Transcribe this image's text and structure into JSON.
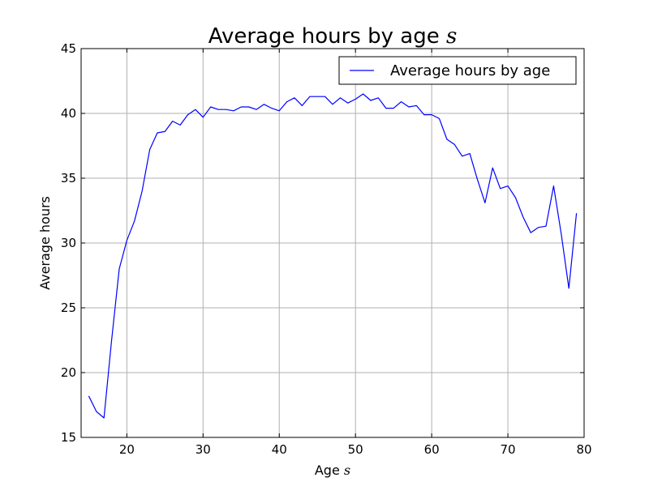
{
  "chart_data": {
    "type": "line",
    "title_text": "Average hours by age",
    "title_symbol": "s",
    "xlabel_text": "Age",
    "xlabel_symbol": "s",
    "ylabel": "Average hours",
    "xlim": [
      14,
      80
    ],
    "ylim": [
      15,
      45
    ],
    "x_ticks": [
      20,
      30,
      40,
      50,
      60,
      70,
      80
    ],
    "y_ticks": [
      15,
      20,
      25,
      30,
      35,
      40,
      45
    ],
    "grid": true,
    "legend_position": "top-right",
    "series": [
      {
        "name": "Average hours by age",
        "color": "#0000ff",
        "x": [
          15,
          16,
          17,
          18,
          19,
          20,
          21,
          22,
          23,
          24,
          25,
          26,
          27,
          28,
          29,
          30,
          31,
          32,
          33,
          34,
          35,
          36,
          37,
          38,
          39,
          40,
          41,
          42,
          43,
          44,
          45,
          46,
          47,
          48,
          49,
          50,
          51,
          52,
          53,
          54,
          55,
          56,
          57,
          58,
          59,
          60,
          61,
          62,
          63,
          64,
          65,
          66,
          67,
          68,
          69,
          70,
          71,
          72,
          73,
          74,
          75,
          76,
          77,
          78,
          79
        ],
        "y": [
          18.2,
          17.0,
          16.5,
          22.5,
          28.0,
          30.2,
          31.7,
          34.0,
          37.2,
          38.5,
          38.6,
          39.4,
          39.1,
          39.9,
          40.3,
          39.7,
          40.5,
          40.3,
          40.3,
          40.2,
          40.5,
          40.5,
          40.3,
          40.7,
          40.4,
          40.2,
          40.9,
          41.2,
          40.6,
          41.3,
          41.3,
          41.3,
          40.7,
          41.2,
          40.8,
          41.1,
          41.5,
          41.0,
          41.2,
          40.4,
          40.4,
          40.9,
          40.5,
          40.6,
          39.9,
          39.9,
          39.6,
          38.0,
          37.6,
          36.7,
          36.9,
          34.9,
          33.1,
          35.8,
          34.2,
          34.4,
          33.5,
          32.0,
          30.8,
          31.2,
          31.3,
          34.4,
          30.7,
          26.5,
          32.3
        ]
      }
    ]
  }
}
